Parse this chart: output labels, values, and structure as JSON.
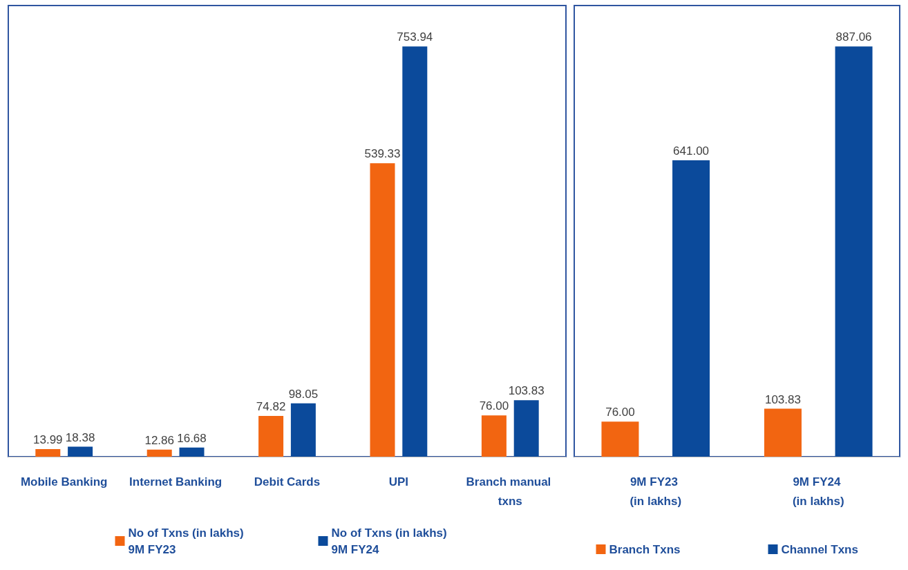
{
  "chart_data": [
    {
      "type": "bar",
      "categories": [
        "Mobile Banking",
        "Internet Banking",
        "Debit Cards",
        "UPI",
        "Branch manual txns"
      ],
      "series": [
        {
          "name": "No of Txns (in lakhs) 9M FY23",
          "color": "#f26511",
          "values": [
            13.99,
            12.86,
            74.82,
            539.33,
            76.0
          ],
          "value_labels": [
            "13.99",
            "12.86",
            "74.82",
            "539.33",
            "76.00"
          ]
        },
        {
          "name": "No of Txns (in lakhs) 9M FY24",
          "color": "#0b4a9b",
          "values": [
            18.38,
            16.68,
            98.05,
            753.94,
            103.83
          ],
          "value_labels": [
            "18.38",
            "16.68",
            "98.05",
            "753.94",
            "103.83"
          ]
        }
      ],
      "legend": "bottom"
    },
    {
      "type": "bar",
      "categories": [
        "9M FY23 (in lakhs)",
        "9M FY24 (in lakhs)"
      ],
      "series": [
        {
          "name": "Branch Txns",
          "color": "#f26511",
          "values": [
            76.0,
            103.83
          ],
          "value_labels": [
            "76.00",
            "103.83"
          ]
        },
        {
          "name": "Channel Txns",
          "color": "#0b4a9b",
          "values": [
            641.0,
            887.06
          ],
          "value_labels": [
            "641.00",
            "887.06"
          ]
        }
      ],
      "legend": "bottom"
    }
  ]
}
